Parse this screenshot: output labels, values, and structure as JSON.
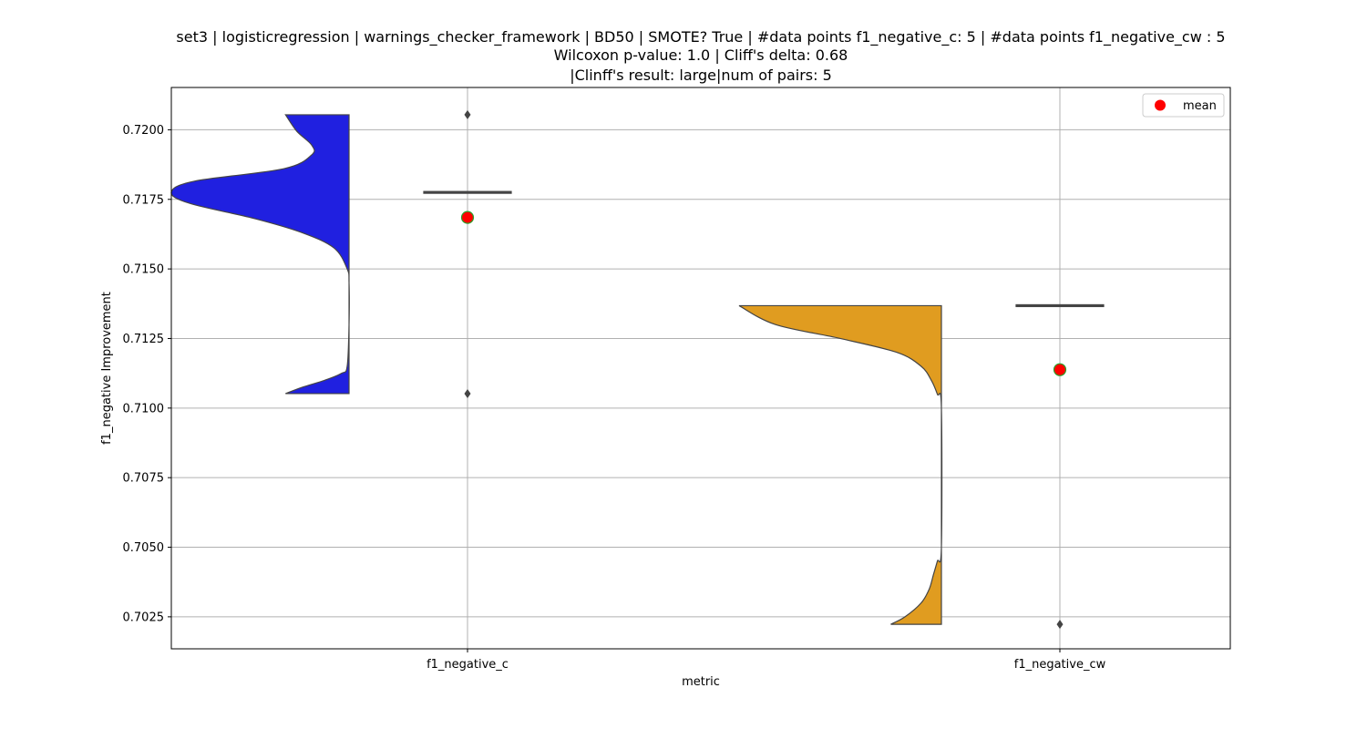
{
  "chart_data": {
    "type": "violin",
    "title_lines": [
      "set3 | logisticregression | warnings_checker_framework | BD50 | SMOTE? True | #data points f1_negative_c: 5 | #data points f1_negative_cw : 5",
      "Wilcoxon p-value: 1.0 | Cliff's delta: 0.68",
      "|Clinff's result: large|num of pairs: 5"
    ],
    "xlabel": "metric",
    "ylabel": "f1_negative Improvement",
    "categories": [
      "f1_negative_c",
      "f1_negative_cw"
    ],
    "ylim": [
      0.70135,
      0.72152
    ],
    "yticks": [
      0.7025,
      0.705,
      0.7075,
      0.71,
      0.7125,
      0.715,
      0.7175,
      0.72
    ],
    "ytick_labels": [
      "0.7025",
      "0.7050",
      "0.7075",
      "0.7100",
      "0.7125",
      "0.7150",
      "0.7175",
      "0.7200"
    ],
    "grid": true,
    "legend": {
      "position": "top-right",
      "label": "mean"
    },
    "series": [
      {
        "category": "f1_negative_c",
        "color": "#2020e0",
        "data_range": [
          0.71052,
          0.72054
        ],
        "density_profile": [
          [
            0.71052,
            0.34
          ],
          [
            0.71075,
            0.25
          ],
          [
            0.711,
            0.13
          ],
          [
            0.71125,
            0.04
          ],
          [
            0.7115,
            0.01
          ],
          [
            0.713,
            0.0
          ],
          [
            0.7145,
            0.0
          ],
          [
            0.715,
            0.01
          ],
          [
            0.71575,
            0.08
          ],
          [
            0.7163,
            0.25
          ],
          [
            0.7168,
            0.5
          ],
          [
            0.71735,
            0.85
          ],
          [
            0.71775,
            1.0
          ],
          [
            0.71815,
            0.83
          ],
          [
            0.7186,
            0.35
          ],
          [
            0.7191,
            0.2
          ],
          [
            0.71945,
            0.2
          ],
          [
            0.71995,
            0.28
          ],
          [
            0.72054,
            0.34
          ]
        ],
        "box": {
          "q1": 0.71775,
          "median": 0.71775,
          "q3": 0.71775,
          "whisker_low": 0.71775,
          "whisker_high": 0.71775
        },
        "outliers": [
          0.72054,
          0.71052
        ],
        "mean": 0.71685
      },
      {
        "category": "f1_negative_cw",
        "color": "#e09c20",
        "data_range": [
          0.70223,
          0.71368
        ],
        "density_profile": [
          [
            0.70223,
            0.25
          ],
          [
            0.7025,
            0.18
          ],
          [
            0.703,
            0.1
          ],
          [
            0.7035,
            0.06
          ],
          [
            0.704,
            0.04
          ],
          [
            0.7045,
            0.02
          ],
          [
            0.705,
            0.0
          ],
          [
            0.71,
            0.0
          ],
          [
            0.7105,
            0.02
          ],
          [
            0.711,
            0.05
          ],
          [
            0.7115,
            0.1
          ],
          [
            0.712,
            0.22
          ],
          [
            0.7125,
            0.5
          ],
          [
            0.713,
            0.82
          ],
          [
            0.71368,
            1.0
          ]
        ],
        "box": {
          "q1": 0.71368,
          "median": 0.71368,
          "q3": 0.71368,
          "whisker_low": 0.71368,
          "whisker_high": 0.71368
        },
        "outliers": [
          0.70223
        ],
        "mean": 0.71138
      }
    ],
    "mean_marker": {
      "fill": "#ff0000",
      "edge": "#2ca02c"
    }
  }
}
